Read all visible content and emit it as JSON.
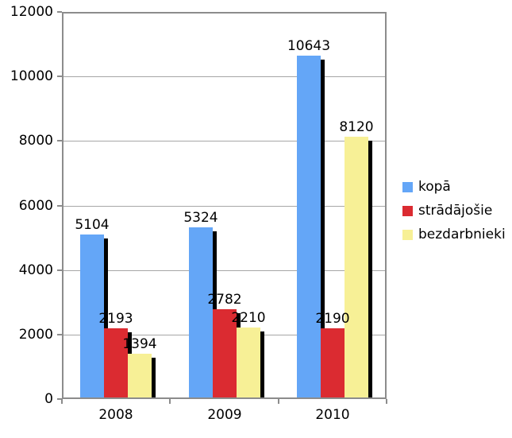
{
  "chart_data": {
    "type": "bar",
    "title": "",
    "xlabel": "",
    "ylabel": "",
    "categories": [
      "2008",
      "2009",
      "2010"
    ],
    "series": [
      {
        "name": "kopā",
        "color": "#64a6f7",
        "values": [
          5104,
          5324,
          10643
        ]
      },
      {
        "name": "strādājošie",
        "color": "#db2b31",
        "values": [
          2193,
          2782,
          2190
        ]
      },
      {
        "name": "bezdarbnieki",
        "color": "#f7f096",
        "values": [
          1394,
          2210,
          8120
        ]
      }
    ],
    "ylim": [
      0,
      12000
    ],
    "ytick_interval": 2000,
    "ytick_labels": [
      "0",
      "2000",
      "4000",
      "6000",
      "8000",
      "10000",
      "12000"
    ],
    "grid": true,
    "data_labels": true,
    "legend_position": "right",
    "bar_shadow": true,
    "shadow_color": "#000000",
    "plot_border_color": "#8c8c8c",
    "gridline_color": "#a6a6a6",
    "background_color": "#ffffff",
    "text_color": "#000000"
  }
}
